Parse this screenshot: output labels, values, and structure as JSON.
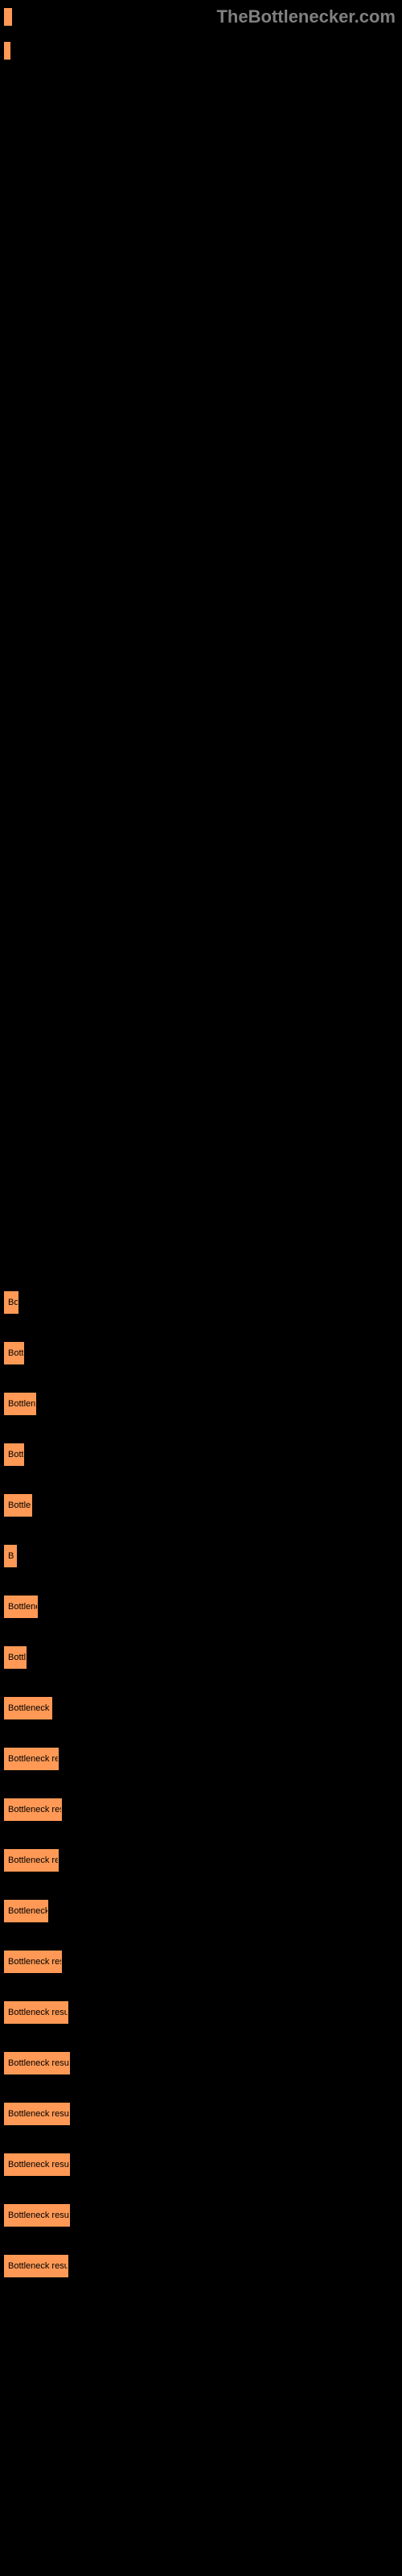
{
  "watermark": "TheBottlenecker.com",
  "top_bars": [
    {
      "width": 10,
      "label": ""
    },
    {
      "width": 8,
      "label": ""
    }
  ],
  "chart": {
    "bar_color": "#ff9955",
    "border_color": "#ff9955",
    "text_color": "#000000",
    "bg_color": "#000000",
    "bars": [
      {
        "width": 18,
        "text": "Bo",
        "label": ""
      },
      {
        "width": 25,
        "text": "Bott",
        "label": ""
      },
      {
        "width": 40,
        "text": "Bottlen",
        "label": ""
      },
      {
        "width": 25,
        "text": "Bott",
        "label": ""
      },
      {
        "width": 35,
        "text": "Bottle",
        "label": ""
      },
      {
        "width": 16,
        "text": "B",
        "label": ""
      },
      {
        "width": 42,
        "text": "Bottlene",
        "label": ""
      },
      {
        "width": 28,
        "text": "Bottl",
        "label": ""
      },
      {
        "width": 60,
        "text": "Bottleneck r",
        "label": ""
      },
      {
        "width": 68,
        "text": "Bottleneck re",
        "label": ""
      },
      {
        "width": 72,
        "text": "Bottleneck resu",
        "label": ""
      },
      {
        "width": 68,
        "text": "Bottleneck res",
        "label": ""
      },
      {
        "width": 55,
        "text": "Bottleneck",
        "label": ""
      },
      {
        "width": 72,
        "text": "Bottleneck resu",
        "label": ""
      },
      {
        "width": 80,
        "text": "Bottleneck result",
        "label": ""
      },
      {
        "width": 82,
        "text": "Bottleneck result",
        "label": ""
      },
      {
        "width": 82,
        "text": "Bottleneck result",
        "label": ""
      },
      {
        "width": 82,
        "text": "Bottleneck result",
        "label": ""
      },
      {
        "width": 82,
        "text": "Bottleneck result",
        "label": ""
      },
      {
        "width": 80,
        "text": "Bottleneck resul",
        "label": ""
      }
    ]
  }
}
